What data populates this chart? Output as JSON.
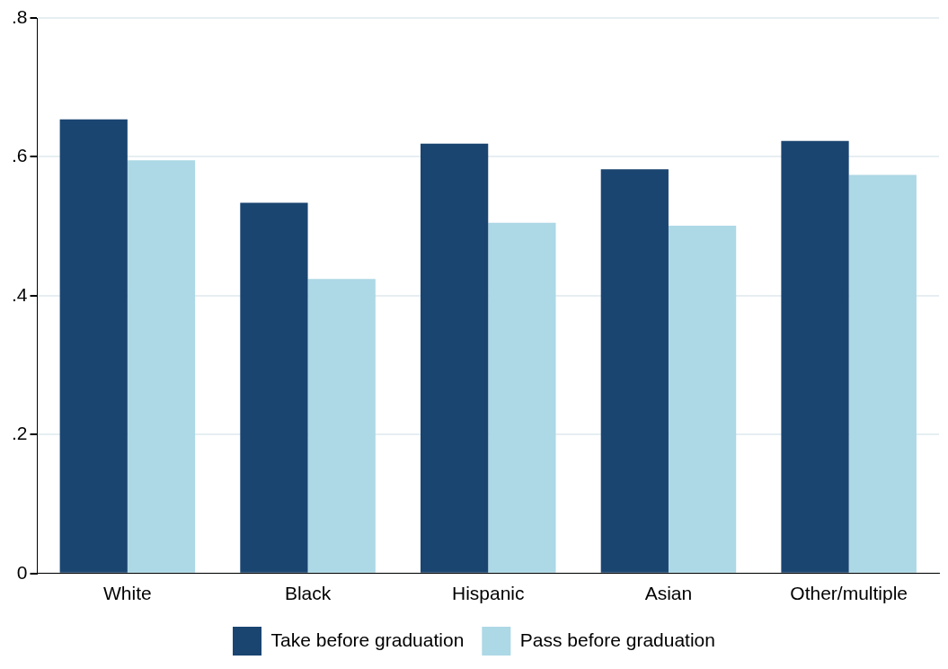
{
  "chart_data": {
    "type": "bar",
    "categories": [
      "White",
      "Black",
      "Hispanic",
      "Asian",
      "Other/multiple"
    ],
    "series": [
      {
        "name": "Take before graduation",
        "color": "#1a4571",
        "values": [
          0.654,
          0.534,
          0.619,
          0.582,
          0.623
        ]
      },
      {
        "name": "Pass before graduation",
        "color": "#add8e6",
        "values": [
          0.595,
          0.424,
          0.505,
          0.501,
          0.574
        ]
      }
    ],
    "ylim": [
      0,
      0.8
    ],
    "yticks": [
      0,
      {
        "value": 0.2,
        "label": ".2"
      },
      {
        "value": 0.4,
        "label": ".4"
      },
      {
        "value": 0.6,
        "label": ".6"
      },
      {
        "value": 0.8,
        "label": ".8"
      }
    ],
    "grid": "y",
    "legend": "bottom"
  }
}
